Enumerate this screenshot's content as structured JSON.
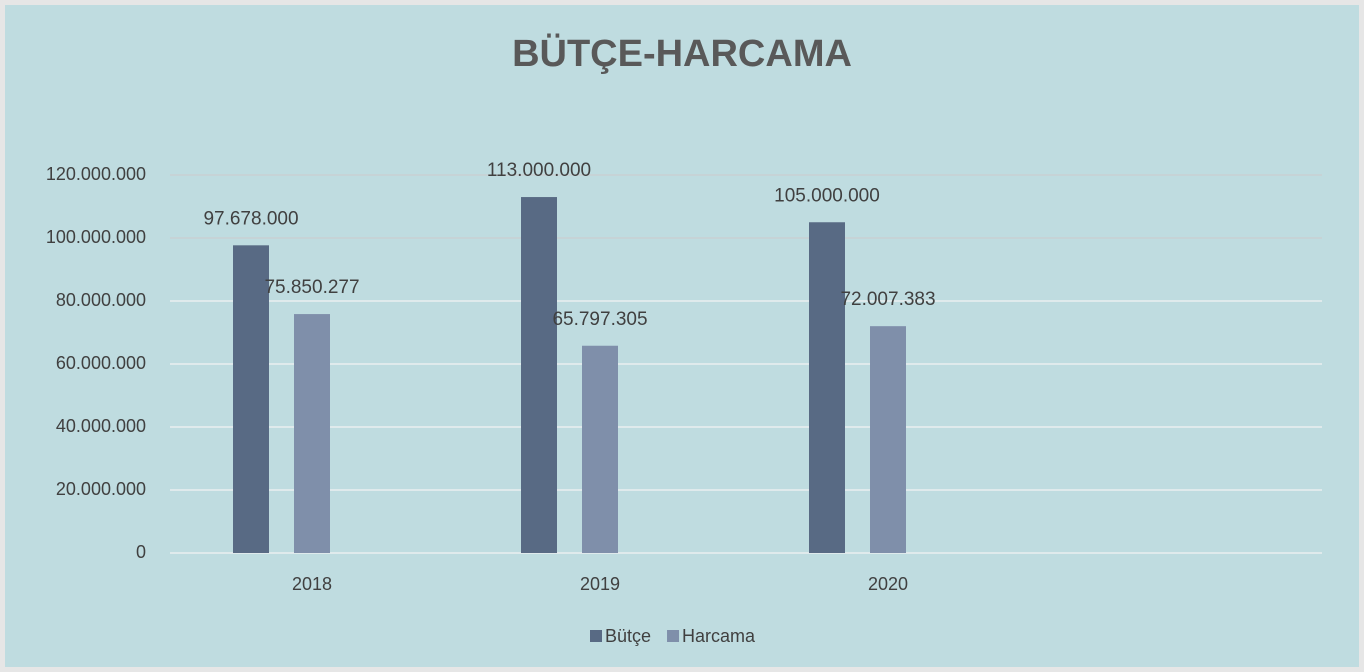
{
  "chart_data": {
    "type": "bar",
    "title": "BÜTÇE-HARCAMA",
    "categories": [
      "2018",
      "2019",
      "2020",
      null
    ],
    "series": [
      {
        "name": "Bütçe",
        "color": "#586a84",
        "values": [
          97678000,
          113000000,
          105000000,
          null
        ],
        "value_labels": [
          "97.678.000",
          "113.000.000",
          "105.000.000",
          null
        ]
      },
      {
        "name": "Harcama",
        "color": "#7f8faa",
        "values": [
          75850277,
          65797305,
          72007383,
          null
        ],
        "value_labels": [
          "75.850.277",
          "65.797.305",
          "72.007.383",
          null
        ]
      }
    ],
    "ylim": [
      0,
      120000000
    ],
    "yticks": [
      0,
      {
        "value": 20000000,
        "label": "20.000.000"
      },
      {
        "value": 40000000,
        "label": "40.000.000"
      },
      {
        "value": 60000000,
        "label": "60.000.000"
      },
      {
        "value": 80000000,
        "label": "80.000.000"
      },
      {
        "value": 100000000,
        "label": "100.000.000"
      },
      {
        "value": 120000000,
        "label": "120.000.000"
      }
    ],
    "grid": true,
    "legend": "bottom"
  }
}
